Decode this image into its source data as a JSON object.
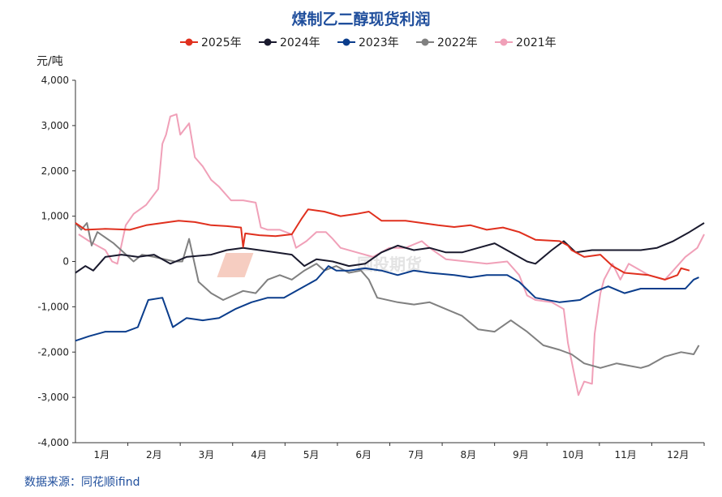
{
  "chart_data": {
    "type": "line",
    "title": "煤制乙二醇现货利润",
    "ylabel": "元/吨",
    "xlabel": "",
    "ylim": [
      -4000,
      4000
    ],
    "yticks": [
      4000,
      3000,
      2000,
      1000,
      0,
      -1000,
      -2000,
      -3000,
      -4000
    ],
    "ytick_labels": [
      "4,000",
      "3,000",
      "2,000",
      "1,000",
      "0",
      "-1,000",
      "-2,000",
      "-3,000",
      "-4,000"
    ],
    "xlim": [
      0,
      12
    ],
    "categories": [
      "1月",
      "2月",
      "3月",
      "4月",
      "5月",
      "6月",
      "7月",
      "8月",
      "9月",
      "10月",
      "11月",
      "12月"
    ],
    "x_unit": "month index (0 = Jan 1, 12 = Dec 31)",
    "grid": false,
    "legend_placement": "top",
    "source": "数据来源：同花顺ifind",
    "watermark": "国投期货 SDIC FUTURES",
    "series": [
      {
        "name": "2025年",
        "color": "#e0301e",
        "x": [
          0,
          0.19,
          0.57,
          1.04,
          1.35,
          1.66,
          1.97,
          2.28,
          2.59,
          2.89,
          3.16,
          3.2,
          3.24,
          3.51,
          3.82,
          4.13,
          4.32,
          4.44,
          4.75,
          5.06,
          5.37,
          5.6,
          5.84,
          6.3,
          6.61,
          6.92,
          7.23,
          7.54,
          7.85,
          8.16,
          8.47,
          8.78,
          9.24,
          9.4,
          9.47,
          9.71,
          10.02,
          10.25,
          10.48,
          10.94,
          11.25,
          11.49,
          11.56,
          11.72
        ],
        "y": [
          850,
          700,
          720,
          700,
          800,
          850,
          900,
          870,
          800,
          780,
          750,
          320,
          620,
          580,
          560,
          600,
          950,
          1150,
          1100,
          1000,
          1050,
          1100,
          900,
          900,
          850,
          800,
          760,
          800,
          700,
          750,
          650,
          480,
          450,
          350,
          250,
          100,
          150,
          -100,
          -250,
          -300,
          -400,
          -300,
          -150,
          -200
        ]
      },
      {
        "name": "2024年",
        "color": "#1a1a2e",
        "x": [
          0,
          0.19,
          0.34,
          0.57,
          0.88,
          1.19,
          1.5,
          1.81,
          2.12,
          2.59,
          2.89,
          3.2,
          3.51,
          3.82,
          4.13,
          4.37,
          4.6,
          4.91,
          5.22,
          5.53,
          5.84,
          6.15,
          6.46,
          6.76,
          7.07,
          7.38,
          7.69,
          8.0,
          8.31,
          8.62,
          8.78,
          9.09,
          9.32,
          9.55,
          9.86,
          10.33,
          10.79,
          11.1,
          11.41,
          11.72,
          12.0
        ],
        "y": [
          -250,
          -100,
          -200,
          100,
          150,
          100,
          150,
          -50,
          100,
          150,
          250,
          300,
          250,
          200,
          150,
          -100,
          50,
          0,
          -100,
          -50,
          200,
          350,
          250,
          300,
          200,
          200,
          300,
          400,
          200,
          0,
          -50,
          250,
          450,
          200,
          250,
          250,
          250,
          300,
          450,
          650,
          850
        ]
      },
      {
        "name": "2023年",
        "color": "#0b3d8c",
        "x": [
          0,
          0.26,
          0.57,
          0.96,
          1.19,
          1.39,
          1.66,
          1.86,
          2.12,
          2.43,
          2.74,
          3.05,
          3.36,
          3.67,
          3.98,
          4.29,
          4.6,
          4.83,
          4.98,
          5.22,
          5.53,
          5.84,
          6.15,
          6.46,
          6.76,
          7.23,
          7.54,
          7.85,
          8.24,
          8.47,
          8.78,
          9.24,
          9.63,
          9.94,
          10.17,
          10.48,
          10.79,
          11.25,
          11.64,
          11.8,
          11.9
        ],
        "y": [
          -1750,
          -1650,
          -1550,
          -1550,
          -1450,
          -850,
          -800,
          -1450,
          -1250,
          -1300,
          -1250,
          -1050,
          -900,
          -800,
          -800,
          -600,
          -400,
          -100,
          -200,
          -200,
          -150,
          -200,
          -300,
          -200,
          -250,
          -300,
          -350,
          -300,
          -300,
          -450,
          -800,
          -900,
          -850,
          -650,
          -550,
          -700,
          -600,
          -600,
          -600,
          -400,
          -350
        ]
      },
      {
        "name": "2022年",
        "color": "#808080",
        "x": [
          0,
          0.11,
          0.22,
          0.31,
          0.42,
          0.73,
          1.11,
          1.27,
          1.5,
          1.89,
          2.04,
          2.17,
          2.35,
          2.59,
          2.82,
          3.2,
          3.44,
          3.67,
          3.9,
          4.13,
          4.37,
          4.6,
          4.75,
          4.98,
          5.22,
          5.45,
          5.6,
          5.76,
          6.15,
          6.46,
          6.76,
          7.07,
          7.38,
          7.69,
          8.0,
          8.31,
          8.62,
          8.93,
          9.24,
          9.47,
          9.71,
          10.02,
          10.33,
          10.79,
          10.94,
          11.25,
          11.56,
          11.8,
          11.9
        ],
        "y": [
          850,
          700,
          850,
          350,
          650,
          400,
          0,
          150,
          100,
          0,
          0,
          500,
          -450,
          -700,
          -850,
          -650,
          -700,
          -400,
          -300,
          -400,
          -200,
          -50,
          -200,
          -100,
          -250,
          -200,
          -400,
          -800,
          -900,
          -950,
          -900,
          -1050,
          -1200,
          -1500,
          -1550,
          -1300,
          -1550,
          -1850,
          -1950,
          -2050,
          -2250,
          -2350,
          -2250,
          -2350,
          -2300,
          -2100,
          -2000,
          -2050,
          -1850
        ]
      },
      {
        "name": "2021年",
        "color": "#f0a0b8",
        "x": [
          0.06,
          0.26,
          0.57,
          0.7,
          0.8,
          0.96,
          1.11,
          1.35,
          1.58,
          1.66,
          1.73,
          1.81,
          1.93,
          2.0,
          2.17,
          2.28,
          2.43,
          2.59,
          2.74,
          2.97,
          3.2,
          3.44,
          3.54,
          3.67,
          3.9,
          4.13,
          4.21,
          4.41,
          4.6,
          4.78,
          4.91,
          5.06,
          5.37,
          5.68,
          5.99,
          6.3,
          6.61,
          6.76,
          7.07,
          7.46,
          7.85,
          8.24,
          8.47,
          8.62,
          8.78,
          9.09,
          9.32,
          9.4,
          9.47,
          9.6,
          9.71,
          9.86,
          9.91,
          10.02,
          10.09,
          10.25,
          10.4,
          10.56,
          10.79,
          10.94,
          11.25,
          11.41,
          11.64,
          11.87,
          12.0
        ],
        "y": [
          600,
          450,
          250,
          0,
          -50,
          800,
          1050,
          1250,
          1600,
          2600,
          2800,
          3200,
          3250,
          2800,
          3050,
          2300,
          2100,
          1800,
          1650,
          1350,
          1350,
          1300,
          750,
          700,
          700,
          600,
          300,
          450,
          650,
          650,
          500,
          300,
          200,
          100,
          300,
          300,
          450,
          300,
          50,
          0,
          -50,
          0,
          -300,
          -750,
          -850,
          -900,
          -1050,
          -1800,
          -2200,
          -2950,
          -2650,
          -2700,
          -1600,
          -700,
          -400,
          -50,
          -400,
          -50,
          -200,
          -300,
          -400,
          -200,
          100,
          300,
          600
        ]
      }
    ]
  }
}
